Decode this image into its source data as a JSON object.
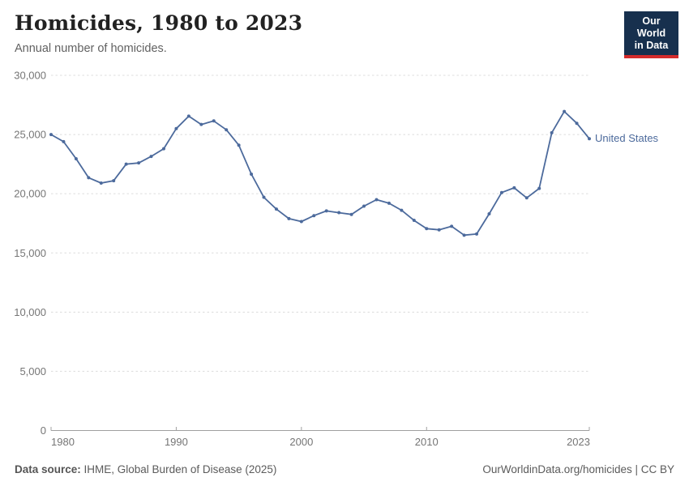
{
  "logo": {
    "line1": "Our World",
    "line2": "in Data"
  },
  "footer": {
    "data_source_label": "Data source:",
    "data_source_value": " IHME, Global Burden of Disease (2025)",
    "attribution": "OurWorldinData.org/homicides | CC BY"
  },
  "chart_data": {
    "type": "line",
    "title": "Homicides, 1980 to 2023",
    "subtitle": "Annual number of homicides.",
    "x": [
      1980,
      1981,
      1982,
      1983,
      1984,
      1985,
      1986,
      1987,
      1988,
      1989,
      1990,
      1991,
      1992,
      1993,
      1994,
      1995,
      1996,
      1997,
      1998,
      1999,
      2000,
      2001,
      2002,
      2003,
      2004,
      2005,
      2006,
      2007,
      2008,
      2009,
      2010,
      2011,
      2012,
      2013,
      2014,
      2015,
      2016,
      2017,
      2018,
      2019,
      2020,
      2021,
      2022,
      2023
    ],
    "series": [
      {
        "name": "United States",
        "color": "#4c6a9c",
        "values": [
          25000,
          24400,
          22950,
          21350,
          20900,
          21100,
          22500,
          22600,
          23150,
          23800,
          25500,
          26550,
          25850,
          26150,
          25400,
          24100,
          21650,
          19700,
          18700,
          17900,
          17650,
          18150,
          18550,
          18400,
          18250,
          18950,
          19500,
          19200,
          18600,
          17750,
          17050,
          16950,
          17250,
          16500,
          16600,
          18300,
          20100,
          20500,
          19650,
          20450,
          25150,
          26950,
          25950,
          24650
        ]
      }
    ],
    "xlim": [
      1980,
      2023
    ],
    "ylim": [
      0,
      30000
    ],
    "yticks": [
      0,
      5000,
      10000,
      15000,
      20000,
      25000,
      30000
    ],
    "ytick_labels": [
      "0",
      "5,000",
      "10,000",
      "15,000",
      "20,000",
      "25,000",
      "30,000"
    ],
    "xticks": [
      1980,
      1990,
      2000,
      2010,
      2023
    ],
    "xtick_labels": [
      "1980",
      "1990",
      "2000",
      "2010",
      "2023"
    ],
    "grid": "horizontal-dashed",
    "grid_color": "#dcdcdc",
    "axis_color": "#a0a0a0",
    "legend_position": "end-of-line-label"
  }
}
